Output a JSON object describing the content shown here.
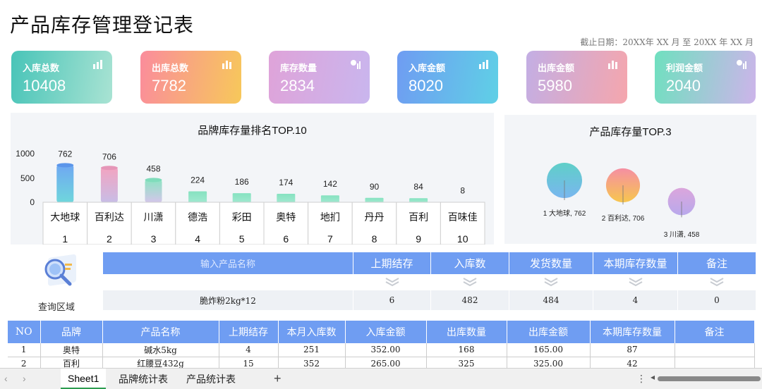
{
  "title": "产品库存管理登记表",
  "date_line": "截止日期：20XX年 XX 月 至 20XX 年 XX 月",
  "kpis": [
    {
      "label": "入库总数",
      "value": "10408",
      "icon": "bar-chart-icon"
    },
    {
      "label": "出库总数",
      "value": "7782",
      "icon": "bar-chart-icon"
    },
    {
      "label": "库存数量",
      "value": "2834",
      "icon": "pie-chart-icon"
    },
    {
      "label": "入库金额",
      "value": "8020",
      "icon": "bar-chart-icon"
    },
    {
      "label": "出库金额",
      "value": "5980",
      "icon": "bar-chart-icon"
    },
    {
      "label": "利润金额",
      "value": "2040",
      "icon": "pie-chart-icon"
    }
  ],
  "chart_data": [
    {
      "type": "bar",
      "title": "品牌库存量排名TOP.10",
      "categories": [
        "大地球",
        "百利达",
        "川潇",
        "德浩",
        "彩田",
        "奥特",
        "地扪",
        "丹丹",
        "百利",
        "百味佳"
      ],
      "ranks": [
        "1",
        "2",
        "3",
        "4",
        "5",
        "6",
        "7",
        "8",
        "9",
        "10"
      ],
      "values": [
        762,
        706,
        458,
        224,
        186,
        174,
        142,
        90,
        84,
        8
      ],
      "yticks": [
        "0",
        "500",
        "1000"
      ],
      "ylim": [
        0,
        1000
      ]
    },
    {
      "type": "scatter",
      "title": "产品库存量TOP.3",
      "labels": [
        "1 大地球, 762",
        "2 百利达, 706",
        "3 川潇, 458"
      ],
      "values": [
        762,
        706,
        458
      ]
    }
  ],
  "query": {
    "label": "查询区域",
    "headers": [
      "输入产品名称",
      "上期结存",
      "入库数",
      "发货数量",
      "本期库存数量",
      "备注"
    ],
    "values": [
      "脆炸粉2kg*12",
      "6",
      "482",
      "484",
      "4",
      "0"
    ]
  },
  "table": {
    "headers": [
      "NO",
      "品牌",
      "产品名称",
      "上期结存",
      "本月入库数",
      "入库金额",
      "出库数量",
      "出库金额",
      "本期库存数量",
      "备注"
    ],
    "rows": [
      [
        "1",
        "奥特",
        "碱水5kg",
        "4",
        "251",
        "352.00",
        "168",
        "165.00",
        "87",
        ""
      ],
      [
        "2",
        "百利",
        "红腰豆432g",
        "15",
        "352",
        "265.00",
        "325",
        "325.00",
        "42",
        ""
      ]
    ]
  },
  "tabs": [
    "Sheet1",
    "品牌统计表",
    "产品统计表"
  ],
  "add_sheet": "+",
  "nav": {
    "prev": "‹",
    "next": "›",
    "more": "⋮",
    "scroll_left": "◂"
  },
  "colors": {
    "header_blue": "#6f9df2",
    "active_tab": "#2c9c4f"
  }
}
